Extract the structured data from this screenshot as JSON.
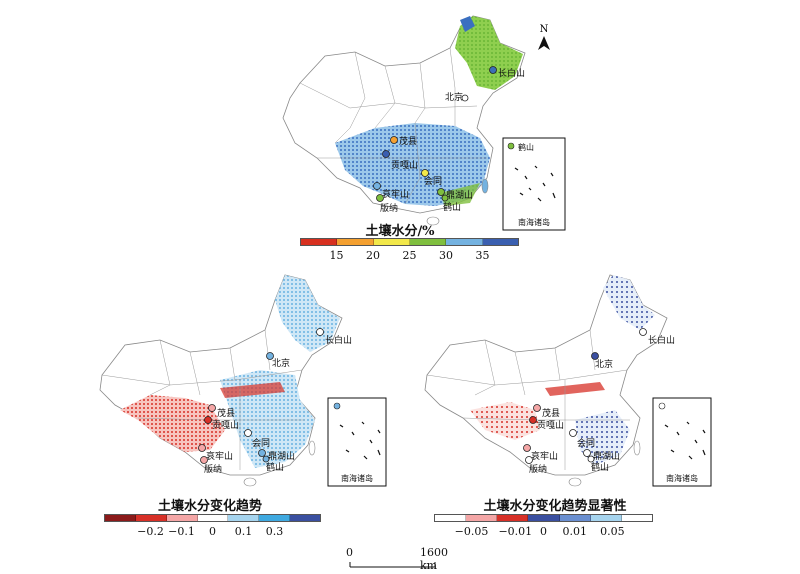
{
  "north_arrow": "N",
  "inset_title": "南海诸岛",
  "top_map": {
    "title": "土壤水分/%",
    "legend_colors": [
      "#d7301f",
      "#f4a030",
      "#f2e84a",
      "#7fbf3f",
      "#74b2e0",
      "#3a5fb0"
    ],
    "legend_ticks": [
      "15",
      "20",
      "25",
      "30",
      "35"
    ],
    "sites": [
      {
        "name": "长白山",
        "color": "#3b6fb6"
      },
      {
        "name": "北京",
        "color": "#ffffff"
      },
      {
        "name": "茂县",
        "color": "#f4a030"
      },
      {
        "name": "贡嘎山",
        "color": "#3a5fb0"
      },
      {
        "name": "会同",
        "color": "#f2e84a"
      },
      {
        "name": "哀牢山",
        "color": "#74b2e0"
      },
      {
        "name": "版纳",
        "color": "#7fbf3f"
      },
      {
        "name": "鼎湖山",
        "color": "#7fbf3f"
      },
      {
        "name": "鹤山",
        "color": "#7fbf3f"
      }
    ]
  },
  "trend_map": {
    "title": "土壤水分变化趋势",
    "legend_colors": [
      "#8b1a1a",
      "#d73027",
      "#f4a6a6",
      "#ffffff",
      "#a6d4ee",
      "#3fa9e0",
      "#3a4fa0"
    ],
    "legend_ticks": [
      "−0.2",
      "−0.1",
      "0",
      "0.1",
      "0.3"
    ],
    "sites": [
      {
        "name": "长白山",
        "color": "#ffffff"
      },
      {
        "name": "北京",
        "color": "#74b2e0"
      },
      {
        "name": "茂县",
        "color": "#f4a6a6"
      },
      {
        "name": "贡嘎山",
        "color": "#d73027"
      },
      {
        "name": "会同",
        "color": "#ffffff"
      },
      {
        "name": "哀牢山",
        "color": "#f4a6a6"
      },
      {
        "name": "版纳",
        "color": "#f4a6a6"
      },
      {
        "name": "鼎湖山",
        "color": "#74b2e0"
      },
      {
        "name": "鹤山",
        "color": "#74b2e0"
      }
    ]
  },
  "significance_map": {
    "title": "土壤水分变化趋势显著性",
    "legend_colors": [
      "#ffffff",
      "#f4a6a6",
      "#d73027",
      "#3a4fa0",
      "#6a8fd0",
      "#a6d4ee",
      "#ffffff"
    ],
    "legend_ticks": [
      "−0.05",
      "−0.01",
      "0",
      "0.01",
      "0.05"
    ],
    "sites": [
      {
        "name": "长白山",
        "color": "#ffffff"
      },
      {
        "name": "北京",
        "color": "#3a4fa0"
      },
      {
        "name": "茂县",
        "color": "#f4a6a6"
      },
      {
        "name": "贡嘎山",
        "color": "#d73027"
      },
      {
        "name": "会同",
        "color": "#ffffff"
      },
      {
        "name": "哀牢山",
        "color": "#f4a6a6"
      },
      {
        "name": "版纳",
        "color": "#ffffff"
      },
      {
        "name": "鼎湖山",
        "color": "#ffffff"
      },
      {
        "name": "鹤山",
        "color": "#ffffff"
      }
    ]
  },
  "scale_bar": {
    "start": "0",
    "end": "1600 km"
  }
}
